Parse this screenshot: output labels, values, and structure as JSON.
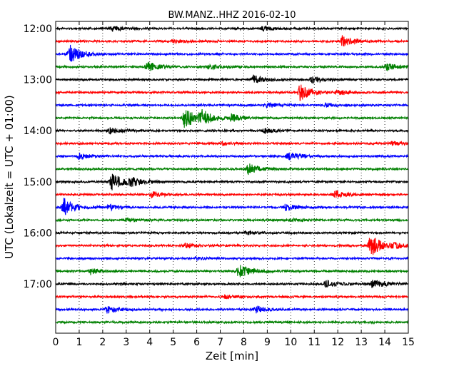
{
  "chart_data": {
    "type": "line",
    "title": "BW.MANZ..HHZ 2016-02-10",
    "xlabel": "Zeit  [min]",
    "ylabel": "UTC (Lokalzeit = UTC + 01:00)",
    "xlim": [
      0,
      15
    ],
    "xticks": [
      0,
      1,
      2,
      3,
      4,
      5,
      6,
      7,
      8,
      9,
      10,
      11,
      12,
      13,
      14,
      15
    ],
    "yticks": [
      "12:00",
      "13:00",
      "14:00",
      "15:00",
      "16:00",
      "17:00"
    ],
    "grid": "vertical dotted lines at each minute",
    "colors": [
      "#000000",
      "#ff0000",
      "#0000ff",
      "#008000"
    ],
    "rows": [
      {
        "start": "12:00",
        "color": "#000000",
        "events": [
          {
            "t": 2.4,
            "amp": 0.18
          },
          {
            "t": 8.8,
            "amp": 0.2
          }
        ]
      },
      {
        "start": "12:15",
        "color": "#ff0000",
        "events": [
          {
            "t": 12.2,
            "amp": 0.45
          },
          {
            "t": 5.0,
            "amp": 0.15
          }
        ]
      },
      {
        "start": "12:30",
        "color": "#0000ff",
        "events": [
          {
            "t": 0.6,
            "amp": 0.85
          }
        ]
      },
      {
        "start": "12:45",
        "color": "#008000",
        "events": [
          {
            "t": 3.9,
            "amp": 0.45
          },
          {
            "t": 6.5,
            "amp": 0.2
          },
          {
            "t": 14.1,
            "amp": 0.3
          }
        ]
      },
      {
        "start": "13:00",
        "color": "#000000",
        "events": [
          {
            "t": 8.4,
            "amp": 0.35
          },
          {
            "t": 10.9,
            "amp": 0.3
          }
        ]
      },
      {
        "start": "13:15",
        "color": "#ff0000",
        "events": [
          {
            "t": 10.4,
            "amp": 0.7
          },
          {
            "t": 12.0,
            "amp": 0.2
          }
        ]
      },
      {
        "start": "13:30",
        "color": "#0000ff",
        "events": [
          {
            "t": 9.0,
            "amp": 0.2
          },
          {
            "t": 11.5,
            "amp": 0.15
          }
        ]
      },
      {
        "start": "13:45",
        "color": "#008000",
        "events": [
          {
            "t": 5.5,
            "amp": 0.9
          },
          {
            "t": 6.2,
            "amp": 0.6
          },
          {
            "t": 7.5,
            "amp": 0.3
          }
        ]
      },
      {
        "start": "14:00",
        "color": "#000000",
        "events": [
          {
            "t": 2.3,
            "amp": 0.25
          },
          {
            "t": 8.9,
            "amp": 0.2
          }
        ]
      },
      {
        "start": "14:15",
        "color": "#ff0000",
        "events": [
          {
            "t": 7.1,
            "amp": 0.15
          },
          {
            "t": 14.3,
            "amp": 0.15
          }
        ]
      },
      {
        "start": "14:30",
        "color": "#0000ff",
        "events": [
          {
            "t": 1.0,
            "amp": 0.25
          },
          {
            "t": 9.9,
            "amp": 0.35
          }
        ]
      },
      {
        "start": "14:45",
        "color": "#008000",
        "events": [
          {
            "t": 8.2,
            "amp": 0.45
          }
        ]
      },
      {
        "start": "15:00",
        "color": "#000000",
        "events": [
          {
            "t": 2.4,
            "amp": 0.75
          },
          {
            "t": 3.2,
            "amp": 0.35
          }
        ]
      },
      {
        "start": "15:15",
        "color": "#ff0000",
        "events": [
          {
            "t": 4.1,
            "amp": 0.25
          },
          {
            "t": 11.9,
            "amp": 0.3
          }
        ]
      },
      {
        "start": "15:30",
        "color": "#0000ff",
        "events": [
          {
            "t": 0.35,
            "amp": 0.8
          },
          {
            "t": 2.3,
            "amp": 0.25
          },
          {
            "t": 9.8,
            "amp": 0.3
          }
        ]
      },
      {
        "start": "15:45",
        "color": "#008000",
        "events": [
          {
            "t": 3.0,
            "amp": 0.15
          },
          {
            "t": 10.0,
            "amp": 0.15
          }
        ]
      },
      {
        "start": "16:00",
        "color": "#000000",
        "events": [
          {
            "t": 8.1,
            "amp": 0.15
          }
        ]
      },
      {
        "start": "16:15",
        "color": "#ff0000",
        "events": [
          {
            "t": 13.4,
            "amp": 0.95
          },
          {
            "t": 5.5,
            "amp": 0.2
          },
          {
            "t": 14.4,
            "amp": 0.2
          }
        ]
      },
      {
        "start": "16:30",
        "color": "#0000ff",
        "events": [
          {
            "t": 6.0,
            "amp": 0.12
          }
        ]
      },
      {
        "start": "16:45",
        "color": "#008000",
        "events": [
          {
            "t": 7.8,
            "amp": 0.55
          },
          {
            "t": 1.5,
            "amp": 0.25
          }
        ]
      },
      {
        "start": "17:00",
        "color": "#000000",
        "events": [
          {
            "t": 11.5,
            "amp": 0.3
          },
          {
            "t": 13.5,
            "amp": 0.35
          }
        ]
      },
      {
        "start": "17:15",
        "color": "#ff0000",
        "events": [
          {
            "t": 7.2,
            "amp": 0.15
          }
        ]
      },
      {
        "start": "17:30",
        "color": "#0000ff",
        "events": [
          {
            "t": 2.2,
            "amp": 0.3
          },
          {
            "t": 8.5,
            "amp": 0.3
          }
        ]
      },
      {
        "start": "17:45",
        "color": "#008000",
        "events": []
      }
    ]
  }
}
